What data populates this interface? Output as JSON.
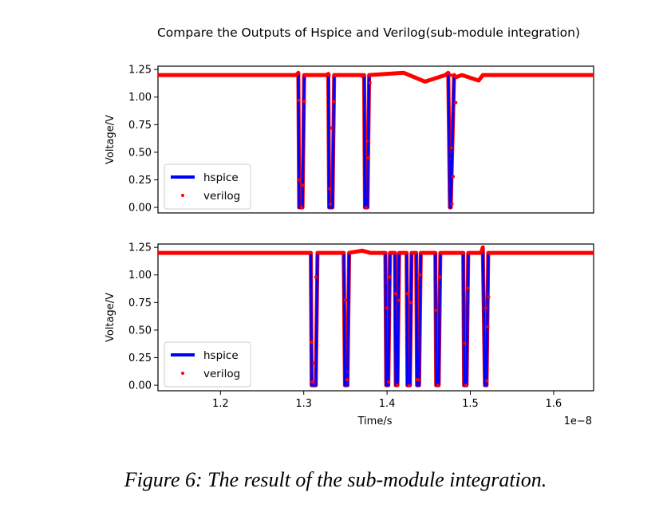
{
  "figure": {
    "title": "Compare the Outputs of Hspice and Verilog(sub-module integration)",
    "caption": "Figure 6: The result of the sub-module integration."
  },
  "colors": {
    "hspice": "#0000ff",
    "verilog": "#ff0000",
    "axes": "#000000"
  },
  "chart_data": [
    {
      "type": "line",
      "title": "",
      "xlabel": "",
      "ylabel": "Voltage/V",
      "xlim": [
        1.125,
        1.648
      ],
      "x_scale_label": "",
      "ylim": [
        -0.05,
        1.28
      ],
      "yticks": [
        "0.00",
        "0.25",
        "0.50",
        "0.75",
        "1.00",
        "1.25"
      ],
      "ytick_values": [
        0,
        0.25,
        0.5,
        0.75,
        1.0,
        1.25
      ],
      "xticks": [],
      "legend": {
        "position": "lower left",
        "entries": [
          "hspice",
          "verilog"
        ]
      },
      "series": [
        {
          "name": "hspice",
          "style": "solid line",
          "x": [
            1.125,
            1.28,
            1.291,
            1.2935,
            1.2945,
            1.2985,
            1.3005,
            1.31,
            1.327,
            1.3295,
            1.3305,
            1.3345,
            1.3365,
            1.37,
            1.3705,
            1.3725,
            1.3735,
            1.3765,
            1.3785,
            1.42,
            1.4455,
            1.47,
            1.4735,
            1.4755,
            1.4765,
            1.4805,
            1.4825,
            1.49,
            1.51,
            1.515,
            1.648
          ],
          "y": [
            1.2,
            1.2,
            1.2,
            1.22,
            0.0,
            0.0,
            1.2,
            1.2,
            1.2,
            1.21,
            0.0,
            0.0,
            1.2,
            1.2,
            1.19,
            1.2,
            0.0,
            0.0,
            1.2,
            1.22,
            1.14,
            1.2,
            1.22,
            0.0,
            0.0,
            1.2,
            1.18,
            1.2,
            1.15,
            1.2,
            1.2
          ]
        },
        {
          "name": "verilog",
          "style": "dots",
          "x": [
            1.291,
            1.2942,
            1.295,
            1.2975,
            1.299,
            1.3008,
            1.3305,
            1.3312,
            1.332,
            1.3335,
            1.3365,
            1.375,
            1.376,
            1.3775,
            1.3795,
            1.4765,
            1.4772,
            1.478,
            1.4795,
            1.4825
          ],
          "y": [
            1.2,
            0.97,
            0.25,
            0.0,
            0.2,
            0.96,
            1.2,
            0.17,
            0.03,
            0.72,
            0.96,
            0.0,
            0.6,
            0.45,
            1.13,
            1.2,
            0.54,
            0.03,
            0.28,
            0.95
          ]
        }
      ]
    },
    {
      "type": "line",
      "title": "",
      "xlabel": "Time/s",
      "ylabel": "Voltage/V",
      "xlim": [
        1.125,
        1.648
      ],
      "x_scale_label": "1e−8",
      "ylim": [
        -0.05,
        1.28
      ],
      "yticks": [
        "0.00",
        "0.25",
        "0.50",
        "0.75",
        "1.00",
        "1.25"
      ],
      "ytick_values": [
        0,
        0.25,
        0.5,
        0.75,
        1.0,
        1.25
      ],
      "xticks": [
        "1.2",
        "1.3",
        "1.4",
        "1.5",
        "1.6"
      ],
      "xtick_values": [
        1.2,
        1.3,
        1.4,
        1.5,
        1.6
      ],
      "legend": {
        "position": "lower left",
        "entries": [
          "hspice",
          "verilog"
        ]
      },
      "series": [
        {
          "name": "hspice",
          "style": "solid line",
          "x": [
            1.125,
            1.28,
            1.29,
            1.3085,
            1.3095,
            1.3145,
            1.3165,
            1.348,
            1.3495,
            1.3525,
            1.3545,
            1.37,
            1.38,
            1.398,
            1.399,
            1.4015,
            1.4035,
            1.4095,
            1.4105,
            1.4125,
            1.4145,
            1.4235,
            1.4245,
            1.4275,
            1.4295,
            1.435,
            1.436,
            1.4385,
            1.4405,
            1.458,
            1.459,
            1.462,
            1.464,
            1.48,
            1.4915,
            1.4925,
            1.4955,
            1.4975,
            1.513,
            1.515,
            1.5175,
            1.5195,
            1.5215,
            1.5235,
            1.648
          ],
          "y": [
            1.2,
            1.2,
            1.2,
            1.2,
            0.0,
            0.0,
            1.2,
            1.2,
            0.0,
            0.0,
            1.2,
            1.22,
            1.2,
            1.2,
            0.0,
            0.0,
            1.2,
            1.2,
            0.0,
            0.0,
            1.2,
            1.2,
            0.0,
            0.0,
            1.2,
            1.2,
            0.0,
            0.0,
            1.2,
            1.2,
            0.0,
            0.0,
            1.2,
            1.2,
            1.2,
            0.0,
            0.0,
            1.2,
            1.2,
            1.25,
            0.0,
            0.0,
            1.2,
            1.2,
            1.2
          ]
        },
        {
          "name": "verilog",
          "style": "dots",
          "x": [
            1.3092,
            1.3105,
            1.312,
            1.3145,
            1.3165,
            1.35,
            1.352,
            1.3545,
            1.4,
            1.402,
            1.4032,
            1.4105,
            1.4125,
            1.4145,
            1.4245,
            1.4265,
            1.4285,
            1.436,
            1.4375,
            1.4395,
            1.459,
            1.461,
            1.4635,
            1.4932,
            1.4948,
            1.4968,
            1.5185,
            1.5198,
            1.521,
            1.522
          ],
          "y": [
            0.39,
            0.03,
            0.2,
            0.98,
            1.2,
            0.77,
            0.05,
            1.2,
            0.7,
            0.03,
            0.98,
            0.83,
            0.0,
            0.77,
            0.83,
            0.0,
            0.75,
            0.05,
            0.05,
            1.0,
            0.68,
            0.0,
            0.98,
            0.38,
            0.0,
            0.88,
            0.7,
            0.04,
            0.53,
            0.8
          ]
        }
      ]
    }
  ]
}
